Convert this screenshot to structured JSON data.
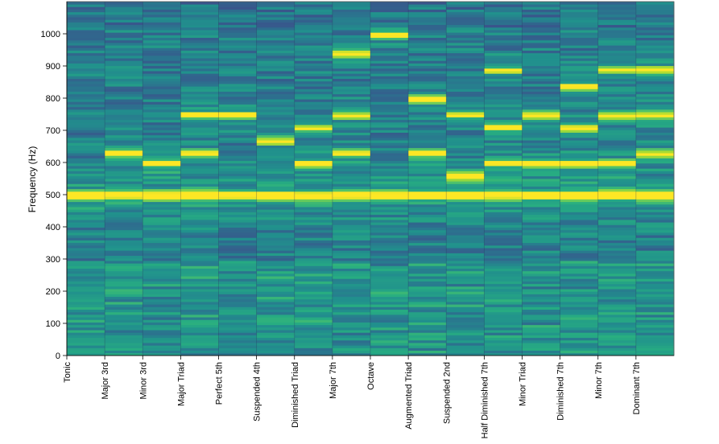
{
  "chart_data": {
    "type": "heatmap",
    "title": "",
    "xlabel": "",
    "ylabel": "Frequency (Hz)",
    "ylim": [
      0,
      1100
    ],
    "yticks": [
      0,
      100,
      200,
      300,
      400,
      500,
      600,
      700,
      800,
      900,
      1000
    ],
    "grid": false,
    "colormap": "viridis",
    "colors": {
      "low": "#3b3f8c",
      "mid": "#1fa187",
      "high": "#fde725"
    },
    "categories": [
      "Tonic",
      "Major 3rd",
      "Minor 3rd",
      "Major Triad",
      "Perfect 5th",
      "Suspended 4th",
      "Diminished Triad",
      "Major 7th",
      "Octave",
      "Augmented Triad",
      "Suspended 2nd",
      "Half Diminished 7th",
      "Minor Triad",
      "Diminished 7th",
      "Minor 7th",
      "Dominant 7th"
    ],
    "peaks_hz": [
      [
        500
      ],
      [
        500,
        630
      ],
      [
        500,
        600
      ],
      [
        500,
        630,
        750
      ],
      [
        500,
        750
      ],
      [
        500,
        670
      ],
      [
        500,
        600,
        710
      ],
      [
        500,
        630,
        750,
        940
      ],
      [
        500,
        1000
      ],
      [
        500,
        630,
        800
      ],
      [
        500,
        560,
        750
      ],
      [
        500,
        600,
        710,
        890
      ],
      [
        500,
        600,
        750
      ],
      [
        500,
        600,
        710,
        840
      ],
      [
        500,
        600,
        750,
        890
      ],
      [
        500,
        630,
        750,
        890
      ]
    ]
  }
}
